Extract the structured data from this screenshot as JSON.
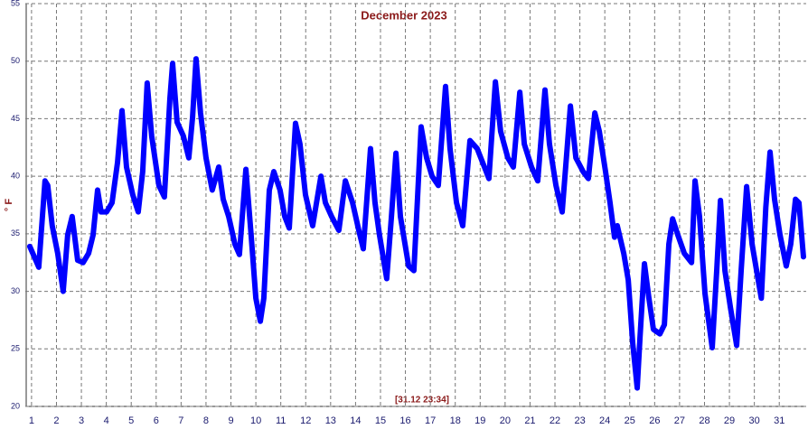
{
  "chart_data": {
    "type": "line",
    "title": "December 2023",
    "y_label": "° F",
    "annotation": "[31.12 23:34]",
    "xlim": [
      0.75,
      32.08
    ],
    "xticks": [
      1,
      2,
      3,
      4,
      5,
      6,
      7,
      8,
      9,
      10,
      11,
      12,
      13,
      14,
      15,
      16,
      17,
      18,
      19,
      20,
      21,
      22,
      23,
      24,
      25,
      26,
      27,
      28,
      29,
      30,
      31
    ],
    "ylim": [
      20,
      55
    ],
    "yticks": [
      20,
      25,
      30,
      35,
      40,
      45,
      50,
      55
    ],
    "grid": true,
    "x": [
      0.93,
      1.11,
      1.29,
      1.54,
      1.65,
      1.83,
      2.05,
      2.27,
      2.45,
      2.63,
      2.85,
      3.07,
      3.29,
      3.47,
      3.65,
      3.79,
      4.01,
      4.23,
      4.45,
      4.63,
      4.81,
      5.06,
      5.28,
      5.46,
      5.64,
      5.82,
      6.11,
      6.33,
      6.55,
      6.66,
      6.84,
      7.09,
      7.31,
      7.46,
      7.6,
      7.78,
      8.0,
      8.25,
      8.51,
      8.69,
      8.91,
      9.16,
      9.34,
      9.6,
      9.81,
      10.0,
      10.18,
      10.32,
      10.54,
      10.72,
      10.97,
      11.16,
      11.34,
      11.59,
      11.77,
      11.99,
      12.28,
      12.61,
      12.79,
      13.04,
      13.33,
      13.59,
      13.88,
      14.13,
      14.31,
      14.6,
      14.78,
      14.96,
      15.25,
      15.44,
      15.62,
      15.8,
      16.13,
      16.34,
      16.63,
      16.85,
      17.07,
      17.32,
      17.61,
      17.79,
      18.05,
      18.3,
      18.59,
      18.88,
      19.17,
      19.35,
      19.61,
      19.82,
      20.11,
      20.33,
      20.59,
      20.77,
      21.06,
      21.31,
      21.6,
      21.78,
      22.04,
      22.29,
      22.62,
      22.84,
      23.13,
      23.34,
      23.6,
      23.78,
      24.03,
      24.21,
      24.39,
      24.5,
      24.76,
      24.94,
      25.12,
      25.3,
      25.41,
      25.59,
      25.77,
      25.95,
      26.21,
      26.39,
      26.57,
      26.72,
      26.93,
      27.19,
      27.48,
      27.62,
      27.8,
      28.02,
      28.31,
      28.49,
      28.64,
      28.82,
      29.04,
      29.29,
      29.47,
      29.69,
      29.91,
      30.09,
      30.28,
      30.46,
      30.63,
      30.81,
      31.03,
      31.28,
      31.46,
      31.65,
      31.79,
      31.97
    ],
    "series": [
      {
        "color": "#0000ff",
        "values": [
          33.9,
          33.0,
          32.1,
          39.6,
          39.2,
          35.7,
          33.3,
          30.0,
          34.9,
          36.5,
          32.7,
          32.5,
          33.3,
          34.9,
          38.8,
          36.9,
          36.9,
          37.7,
          41.2,
          45.7,
          40.8,
          38.4,
          36.9,
          40.4,
          48.1,
          43.5,
          39.2,
          38.2,
          46.7,
          49.8,
          44.7,
          43.5,
          41.6,
          45.1,
          50.2,
          45.5,
          41.6,
          38.8,
          40.8,
          38.0,
          36.5,
          34.1,
          33.2,
          40.6,
          34.9,
          29.4,
          27.4,
          29.4,
          38.8,
          40.4,
          38.8,
          36.5,
          35.5,
          44.6,
          42.8,
          38.4,
          35.7,
          40.0,
          37.7,
          36.5,
          35.3,
          39.6,
          37.7,
          35.3,
          33.7,
          42.4,
          37.7,
          34.9,
          31.1,
          36.5,
          42.0,
          36.5,
          32.2,
          31.8,
          44.3,
          41.6,
          40.0,
          39.2,
          47.8,
          42.4,
          37.7,
          35.7,
          43.1,
          42.4,
          40.8,
          39.8,
          48.2,
          43.9,
          41.6,
          40.8,
          47.3,
          42.8,
          40.8,
          39.6,
          47.5,
          42.8,
          39.2,
          36.9,
          46.1,
          41.6,
          40.4,
          39.8,
          45.5,
          43.9,
          40.4,
          37.7,
          34.7,
          35.7,
          33.3,
          31.0,
          25.5,
          21.6,
          25.9,
          32.4,
          29.4,
          26.7,
          26.3,
          27.1,
          34.1,
          36.3,
          34.9,
          33.3,
          32.5,
          39.6,
          36.5,
          29.8,
          25.1,
          31.8,
          37.9,
          31.8,
          28.6,
          25.3,
          31.8,
          39.1,
          34.1,
          31.8,
          29.4,
          37.3,
          42.1,
          38.0,
          34.9,
          32.2,
          34.1,
          38.0,
          37.7,
          33.0
        ]
      }
    ]
  }
}
